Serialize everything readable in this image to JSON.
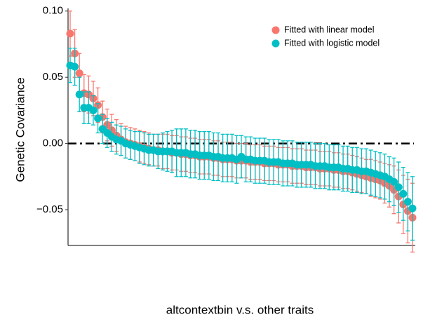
{
  "chart_data": {
    "type": "errorbar-points",
    "x_label": "altcontextbin v.s. other traits",
    "y_label": "Genetic Covariance",
    "categories": [
      null,
      null,
      null,
      null,
      null,
      null,
      null,
      null,
      null,
      null,
      null,
      null,
      null,
      null,
      null,
      null,
      null,
      null,
      null,
      null,
      null,
      null,
      null,
      null,
      null,
      null,
      null,
      null,
      null,
      null,
      null,
      null,
      null,
      null,
      null,
      null,
      null,
      null,
      null,
      null,
      null,
      null,
      null,
      null,
      null,
      null,
      null,
      null,
      null,
      null,
      null,
      null,
      null,
      null,
      null,
      null,
      null,
      null,
      null,
      null,
      null,
      null,
      null,
      null,
      null,
      null,
      null,
      null,
      null,
      null,
      null,
      null,
      null,
      null,
      null
    ],
    "series": [
      {
        "name": "Fitted with linear model",
        "color": "#F8766D",
        "values": [
          0.083,
          0.068,
          0.053,
          0.038,
          0.037,
          0.034,
          0.029,
          0.02,
          0.014,
          0.01,
          0.006,
          0.003,
          0.001,
          0.0,
          -0.001,
          -0.002,
          -0.003,
          -0.004,
          -0.005,
          -0.005,
          -0.006,
          -0.006,
          -0.007,
          -0.007,
          -0.008,
          -0.008,
          -0.009,
          -0.009,
          -0.01,
          -0.01,
          -0.01,
          -0.011,
          -0.011,
          -0.012,
          -0.012,
          -0.012,
          -0.013,
          -0.013,
          -0.013,
          -0.014,
          -0.014,
          -0.014,
          -0.015,
          -0.015,
          -0.015,
          -0.016,
          -0.016,
          -0.016,
          -0.017,
          -0.017,
          -0.017,
          -0.018,
          -0.018,
          -0.018,
          -0.019,
          -0.019,
          -0.019,
          -0.02,
          -0.02,
          -0.021,
          -0.021,
          -0.022,
          -0.023,
          -0.024,
          -0.025,
          -0.026,
          -0.027,
          -0.028,
          -0.03,
          -0.032,
          -0.035,
          -0.04,
          -0.046,
          -0.051,
          -0.056
        ],
        "errors": [
          0.017,
          0.018,
          0.015,
          0.014,
          0.014,
          0.013,
          0.013,
          0.012,
          0.012,
          0.012,
          0.012,
          0.012,
          0.012,
          0.012,
          0.012,
          0.012,
          0.012,
          0.012,
          0.012,
          0.012,
          0.013,
          0.013,
          0.013,
          0.013,
          0.013,
          0.013,
          0.013,
          0.013,
          0.013,
          0.013,
          0.013,
          0.013,
          0.013,
          0.013,
          0.013,
          0.013,
          0.013,
          0.013,
          0.013,
          0.013,
          0.013,
          0.013,
          0.013,
          0.013,
          0.013,
          0.013,
          0.013,
          0.013,
          0.013,
          0.013,
          0.013,
          0.013,
          0.013,
          0.013,
          0.013,
          0.013,
          0.013,
          0.013,
          0.013,
          0.013,
          0.013,
          0.013,
          0.013,
          0.013,
          0.013,
          0.014,
          0.014,
          0.014,
          0.015,
          0.016,
          0.018,
          0.02,
          0.022,
          0.024,
          0.026
        ]
      },
      {
        "name": "Fitted with logistic model",
        "color": "#00BFC4",
        "values": [
          0.059,
          0.058,
          0.037,
          0.027,
          0.027,
          0.025,
          0.019,
          0.011,
          0.008,
          0.005,
          0.003,
          0.002,
          0.0,
          -0.001,
          -0.002,
          -0.003,
          -0.004,
          -0.005,
          -0.005,
          -0.006,
          -0.006,
          -0.006,
          -0.006,
          -0.007,
          -0.007,
          -0.007,
          -0.008,
          -0.008,
          -0.009,
          -0.009,
          -0.009,
          -0.01,
          -0.01,
          -0.011,
          -0.011,
          -0.011,
          -0.012,
          -0.01,
          -0.012,
          -0.012,
          -0.013,
          -0.013,
          -0.013,
          -0.014,
          -0.014,
          -0.014,
          -0.015,
          -0.015,
          -0.015,
          -0.016,
          -0.016,
          -0.016,
          -0.016,
          -0.017,
          -0.017,
          -0.017,
          -0.018,
          -0.018,
          -0.018,
          -0.019,
          -0.019,
          -0.02,
          -0.02,
          -0.021,
          -0.021,
          -0.022,
          -0.023,
          -0.024,
          -0.025,
          -0.027,
          -0.029,
          -0.033,
          -0.038,
          -0.044,
          -0.049
        ],
        "errors": [
          0.013,
          0.014,
          0.013,
          0.012,
          0.012,
          0.011,
          0.011,
          0.011,
          0.011,
          0.011,
          0.011,
          0.011,
          0.011,
          0.011,
          0.011,
          0.012,
          0.012,
          0.012,
          0.012,
          0.013,
          0.014,
          0.015,
          0.016,
          0.018,
          0.018,
          0.018,
          0.018,
          0.018,
          0.018,
          0.018,
          0.018,
          0.018,
          0.018,
          0.018,
          0.018,
          0.018,
          0.018,
          0.016,
          0.017,
          0.017,
          0.017,
          0.017,
          0.017,
          0.017,
          0.017,
          0.017,
          0.017,
          0.017,
          0.017,
          0.017,
          0.017,
          0.017,
          0.017,
          0.017,
          0.017,
          0.017,
          0.017,
          0.017,
          0.017,
          0.017,
          0.017,
          0.017,
          0.017,
          0.017,
          0.017,
          0.017,
          0.017,
          0.017,
          0.017,
          0.017,
          0.018,
          0.019,
          0.02,
          0.022,
          0.024
        ]
      }
    ],
    "ylim": [
      -0.077,
      0.102
    ],
    "yticks": [
      {
        "value": -0.05,
        "label": "−0.05"
      },
      {
        "value": 0,
        "label": "0.00"
      },
      {
        "value": 0.05,
        "label": "0.05"
      },
      {
        "value": 0.1,
        "label": "0.10"
      }
    ],
    "reference_line": 0,
    "legend": "top-right"
  }
}
